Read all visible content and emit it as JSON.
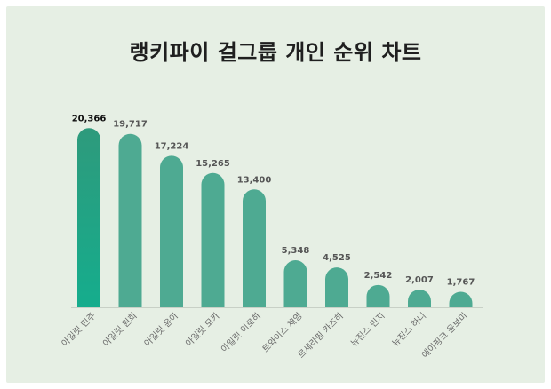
{
  "chart_data": {
    "type": "bar",
    "title": "랭키파이 걸그룹 개인 순위 차트",
    "categories": [
      "아일릿 민주",
      "아일릿 원희",
      "아일릿 윤아",
      "아일릿 모카",
      "아일릿 이로하",
      "트와이스 채영",
      "르세라핌 카즈하",
      "뉴진스 민지",
      "뉴진스 하니",
      "에이핑크 윤보미"
    ],
    "values": [
      20366,
      19717,
      17224,
      15265,
      13400,
      5348,
      4525,
      2542,
      2007,
      1767
    ],
    "value_labels": [
      "20,366",
      "19,717",
      "17,224",
      "15,265",
      "13,400",
      "5,348",
      "4,525",
      "2,542",
      "2,007",
      "1,767"
    ],
    "xlabel": "",
    "ylabel": "",
    "ylim": [
      0,
      21000
    ],
    "grid": false,
    "colors": {
      "bar": "#4eaa92",
      "top_bar_top": "#2e9a7c",
      "top_bar_bottom": "#15ad8d",
      "background": "#e6efe4",
      "baseline": "#c8d0c6"
    }
  }
}
